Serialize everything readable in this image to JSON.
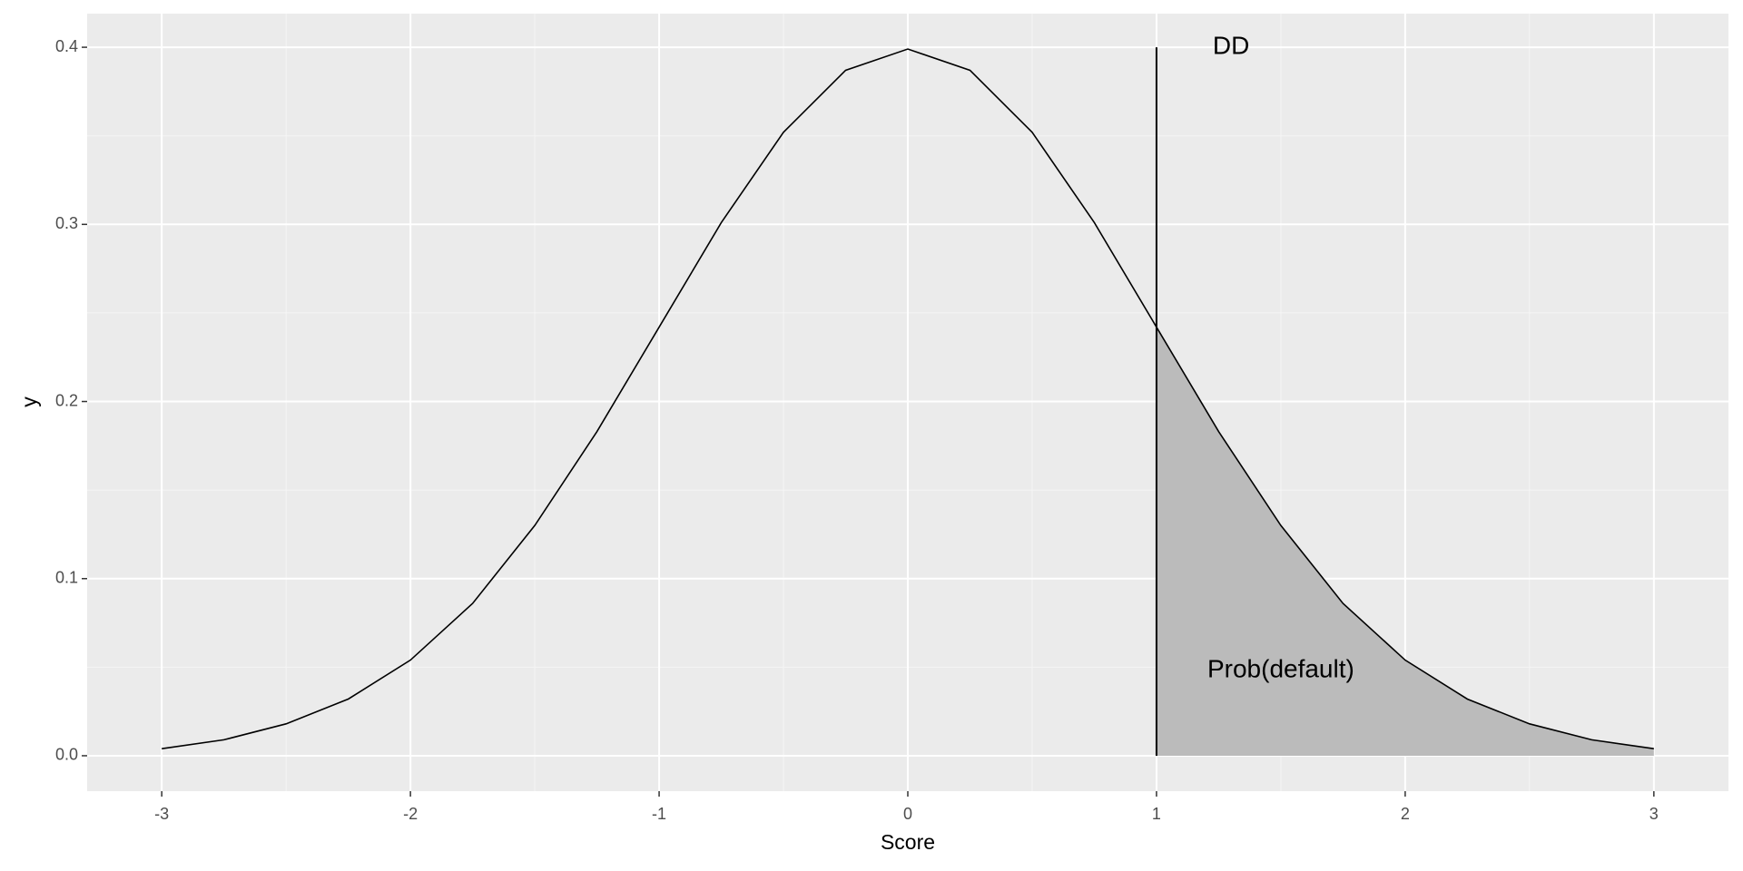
{
  "chart_data": {
    "type": "line",
    "x_label": "Score",
    "y_label": "y",
    "xlim": [
      -3.3,
      3.3
    ],
    "ylim": [
      -0.02,
      0.419
    ],
    "xticks": [
      -3,
      -2,
      -1,
      0,
      1,
      2,
      3
    ],
    "yticks": [
      {
        "value": 0,
        "label": "0.0"
      },
      0.1,
      0.2,
      0.3,
      0.4
    ],
    "grid": true,
    "minor_grid": true,
    "series": [
      {
        "color": "#000000",
        "x": [
          -3,
          -2.75,
          -2.5,
          -2.25,
          -2,
          -1.75,
          -1.5,
          -1.25,
          -1,
          -0.75,
          -0.5,
          -0.25,
          0,
          0.25,
          0.5,
          0.75,
          1,
          1.25,
          1.5,
          1.75,
          2,
          2.25,
          2.5,
          2.75,
          3
        ],
        "values": [
          0.004,
          0.009,
          0.018,
          0.032,
          0.054,
          0.086,
          0.13,
          0.183,
          0.242,
          0.301,
          0.352,
          0.387,
          0.399,
          0.387,
          0.352,
          0.301,
          0.242,
          0.183,
          0.13,
          0.086,
          0.054,
          0.032,
          0.018,
          0.009,
          0.004
        ]
      }
    ],
    "area": {
      "color": "#bbbbbb",
      "x": [
        1,
        1.25,
        1.5,
        1.75,
        2,
        2.25,
        2.5,
        2.75,
        3
      ],
      "values": [
        0.242,
        0.183,
        0.13,
        0.086,
        0.054,
        0.032,
        0.018,
        0.009,
        0.004
      ]
    },
    "vline": {
      "x": 1,
      "y": [
        0,
        0.4
      ],
      "color": "#000000"
    },
    "annotations": [
      {
        "text": "DD",
        "x": 1.3,
        "y": 0.4
      },
      {
        "text": "Prob(default)",
        "x": 1.5,
        "y": 0.048
      }
    ]
  }
}
